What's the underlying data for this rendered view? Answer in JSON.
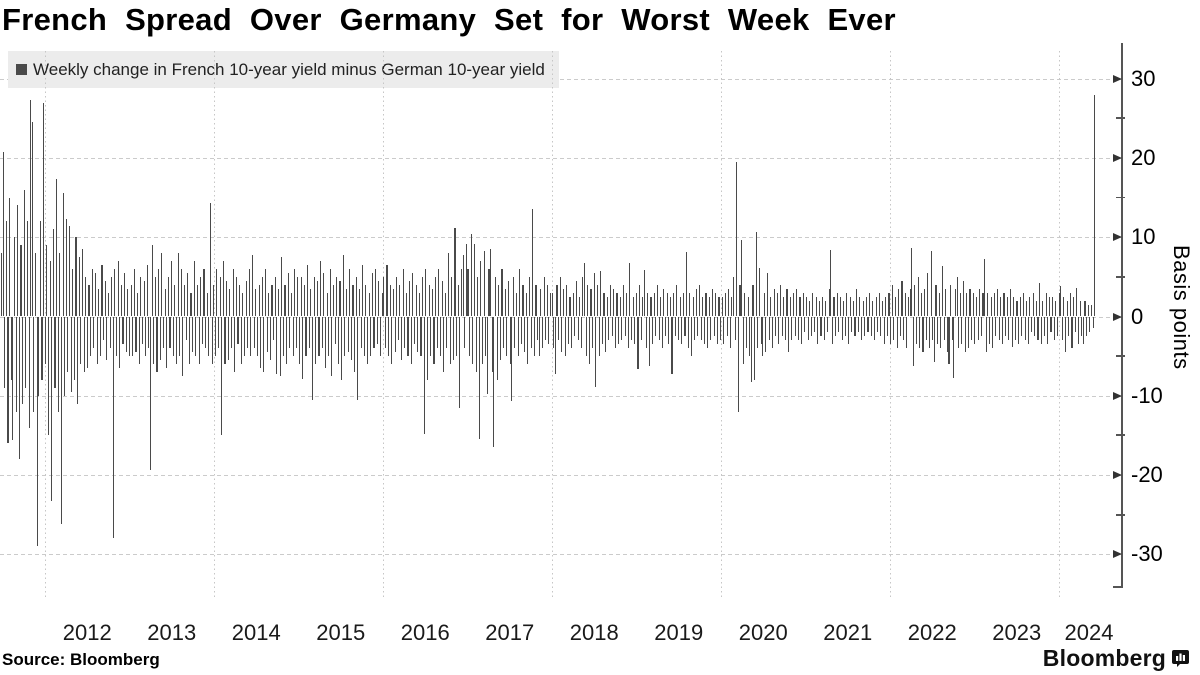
{
  "header": {
    "title": "French Spread Over Germany Set for Worst Week Ever"
  },
  "legend": {
    "marker_color": "#4a4a4a",
    "label": "Weekly change in French 10-year yield minus German 10-year yield"
  },
  "y_axis": {
    "title": "Basis points"
  },
  "footer": {
    "source": "Source: Bloomberg",
    "brand": "Bloomberg"
  },
  "chart_data": {
    "type": "bar",
    "title": "French Spread Over Germany Set for Worst Week Ever",
    "series_name": "Weekly change in French 10-year yield minus German 10-year yield",
    "unit": "basis points",
    "frequency": "weekly",
    "x_range": [
      "2011-06",
      "2024-06"
    ],
    "ylim": [
      -33,
      32
    ],
    "yticks_major": [
      30,
      20,
      10,
      0,
      -10,
      -20,
      -30
    ],
    "yticks_minor": [
      25,
      15,
      5,
      -5,
      -15,
      -25
    ],
    "xtick_years": [
      2012,
      2013,
      2014,
      2015,
      2016,
      2017,
      2018,
      2019,
      2020,
      2021,
      2022,
      2023,
      2024
    ],
    "x_gridline_years": [
      2012,
      2014,
      2016,
      2018,
      2020,
      2022,
      2024
    ],
    "grid": {
      "horizontal": "dashed",
      "vertical": "dotted"
    },
    "bar_color": "#4a4a4a",
    "legend_position": "top-left",
    "values": [
      8,
      20.7,
      -9,
      12,
      -16,
      15,
      -8,
      -15.6,
      10,
      -12,
      14,
      -18,
      9,
      -11,
      16,
      -9,
      12,
      -14,
      27.3,
      24.5,
      -12,
      8,
      -28.9,
      -10,
      12,
      -8,
      26.9,
      -6,
      9,
      -15,
      7,
      -23.3,
      11,
      -9,
      17.4,
      -12,
      8,
      -26.2,
      15.6,
      -10,
      12.3,
      -7,
      11.4,
      -9.5,
      6,
      -8,
      10,
      -11,
      7.5,
      -6,
      8.5,
      -7,
      5,
      -6.5,
      4,
      -5,
      6,
      -4,
      5.5,
      -6,
      3.5,
      -5,
      6.5,
      -3,
      4.5,
      -5.5,
      3,
      -4,
      5,
      -27.9,
      6,
      -5,
      7,
      -6.5,
      4,
      -3.5,
      5.5,
      -4.5,
      3.5,
      -5,
      4,
      -5,
      6,
      -4.5,
      3,
      -6,
      5,
      -3.5,
      4.5,
      -5,
      6.5,
      -4,
      -19.4,
      9,
      -6,
      5,
      -7,
      6,
      -5.5,
      8,
      -4,
      3.5,
      -6.5,
      5,
      -4,
      7,
      -5,
      4,
      -6,
      8,
      -5,
      6,
      -7.5,
      4,
      -3,
      5.5,
      -6,
      3,
      -4.5,
      7,
      -5,
      4,
      -6,
      5,
      -3.5,
      6,
      -4,
      3,
      -5,
      14.3,
      -6,
      4,
      -5,
      6,
      -4,
      5,
      -15,
      7,
      -6,
      4.5,
      -5.5,
      3.5,
      -4,
      6,
      -7,
      5,
      -3.5,
      4,
      -6,
      3,
      -5,
      4.5,
      -4,
      6,
      -5,
      7.8,
      -4,
      3.5,
      -5,
      4,
      -6.5,
      5,
      -7,
      6,
      -4.5,
      3,
      -5.5,
      4,
      -3,
      5,
      -7.2,
      3.5,
      -7.5,
      7.5,
      -5,
      4,
      -6,
      5.5,
      -4,
      3,
      -5,
      6,
      -4,
      5,
      -6,
      5,
      -7.9,
      4,
      -5,
      6.5,
      -4,
      3.5,
      -10.5,
      5,
      -6,
      4.5,
      -5,
      7,
      -4,
      5.5,
      -6.5,
      3,
      -5,
      6,
      -7.5,
      4,
      -3.5,
      5,
      -6,
      4.5,
      -8,
      7.8,
      -5,
      3.5,
      -4.5,
      6,
      -5.5,
      4,
      -7,
      5,
      -10.5,
      3.5,
      -4,
      6.5,
      -5,
      4,
      -6,
      3,
      -5,
      5.5,
      -4,
      6,
      -3.5,
      4.5,
      -5,
      3,
      5,
      -4,
      6.5,
      -5,
      4,
      -6,
      3.5,
      -4.5,
      5,
      -3,
      4,
      -5.5,
      6,
      -4,
      3,
      -5,
      4.5,
      -6,
      5.5,
      -3.5,
      4,
      -4.5,
      3,
      -5,
      5,
      -14.8,
      6,
      -8,
      4,
      -5,
      3.5,
      -6,
      5,
      -4,
      6,
      -5,
      4.5,
      -7,
      3,
      -4,
      8,
      -6,
      5,
      -5.5,
      11.2,
      -5,
      4,
      -11.6,
      6,
      7.8,
      -4,
      9.1,
      6,
      -5,
      10.4,
      -6,
      9.1,
      -7,
      5,
      -15.4,
      7,
      -6,
      8.2,
      -5,
      -9.8,
      6,
      8.5,
      -7,
      -16.5,
      5,
      -8,
      4,
      -5.5,
      6,
      -4,
      3.5,
      -5,
      4.5,
      -6,
      -10.6,
      5,
      -4,
      3,
      -5,
      6,
      -3.5,
      4,
      -4.5,
      3,
      -6,
      5,
      -4,
      13.6,
      -5,
      4,
      -3,
      -5,
      3.5,
      -4,
      5,
      -3,
      4,
      -3.5,
      3,
      3,
      -4,
      -7.2,
      4,
      -3,
      5,
      -4.5,
      3.5,
      -5,
      4,
      -3.5,
      2.5,
      -4,
      3,
      -2.5,
      4.5,
      -3,
      2.5,
      -4,
      5,
      6.8,
      -5,
      4,
      -6,
      3.5,
      -4,
      5.5,
      -8.9,
      4,
      -5,
      5.7,
      -3.5,
      3,
      -4.5,
      2.5,
      -3,
      4,
      -2.5,
      3.5,
      -4,
      3,
      -3.5,
      2.5,
      -3,
      4,
      -2.5,
      3,
      -4,
      6.8,
      -3,
      2.5,
      -3.5,
      3,
      -6.6,
      4,
      -3,
      2.5,
      5.9,
      -4,
      3,
      -6.3,
      2.5,
      -3.5,
      3,
      -2.5,
      4,
      -3,
      2.5,
      -4,
      3.5,
      -2.5,
      3,
      -3.5,
      2.5,
      -7.2,
      3,
      -2.5,
      4,
      -3,
      2.5,
      -3.5,
      3,
      -2.5,
      8.1,
      -4,
      3,
      -5,
      2.5,
      -3,
      3.5,
      -2.5,
      4,
      -3,
      2.5,
      -3.5,
      3,
      -4,
      2.5,
      -3,
      3.5,
      -2.5,
      3,
      -3.5,
      2.5,
      -3,
      2.5,
      -3.5,
      3,
      -2.5,
      3.5,
      -4,
      2.5,
      5,
      -3,
      19.5,
      -12.1,
      4,
      9.6,
      -6,
      3,
      -4,
      2.5,
      -5,
      -8.3,
      4,
      -8,
      10.6,
      -4,
      6.1,
      -3.5,
      -5,
      3,
      -4.5,
      5.5,
      -3,
      2.5,
      -4,
      3.5,
      -2.5,
      3,
      -3.5,
      4,
      -2.5,
      2.5,
      -3,
      3.5,
      -4.5,
      2.5,
      -3,
      3,
      -2.5,
      3.5,
      -3,
      2.5,
      -3.5,
      3,
      -2,
      2.5,
      -3,
      2,
      -2.5,
      3,
      -2,
      2.5,
      -3.5,
      2,
      -2.5,
      2.5,
      -3,
      2,
      -2,
      3.5,
      8.4,
      -3.5,
      2.5,
      -2.5,
      3,
      -2,
      2.5,
      -3,
      2,
      -2.5,
      3,
      -3.5,
      2.5,
      -2,
      2,
      -2.5,
      3.5,
      -2,
      2.5,
      -3,
      2,
      -2.5,
      2.5,
      -2,
      3,
      -2.5,
      2,
      -3,
      2.5,
      -2,
      3,
      -2.5,
      2,
      -3.5,
      2.5,
      -2.5,
      3,
      -3.5,
      4,
      -3,
      2.5,
      -4,
      3.5,
      -2.5,
      4.5,
      -3,
      3,
      -4,
      2.5,
      3.5,
      8.7,
      -6.2,
      4,
      -3.5,
      5,
      -4,
      3,
      -4.5,
      3.5,
      -3,
      5.5,
      -4,
      8.2,
      -3,
      -5.8,
      4,
      -3.5,
      3,
      -4,
      6.4,
      -3,
      3.5,
      -4.5,
      -6,
      4,
      -3,
      -7.8,
      3.5,
      5,
      -4,
      3,
      -3.5,
      4.5,
      -4.5,
      3,
      -4,
      3.5,
      -3,
      3,
      -3.5,
      2.5,
      -3,
      3.5,
      -2.5,
      3,
      7.2,
      -4.5,
      3,
      -3.5,
      2.5,
      -4,
      3,
      -2.5,
      3.5,
      -3,
      2.5,
      -3.5,
      3,
      -2.5,
      2.5,
      -3,
      3.5,
      -3.8,
      2.5,
      -3,
      2,
      -3.5,
      2.5,
      -2.5,
      3,
      -3,
      2,
      -3.5,
      2.5,
      -2,
      3,
      -2.5,
      2,
      -3,
      4.2,
      -3.5,
      2,
      -2.5,
      3,
      -3.5,
      2.5,
      -2,
      2.5,
      -3,
      2,
      -2.5,
      3,
      3.8,
      -3,
      2.5,
      -4.5,
      2,
      -2.5,
      3,
      -4,
      2.5,
      -2,
      3.6,
      -3.5,
      2,
      -2.5,
      -3.5,
      2,
      -2.5,
      1.5,
      -2,
      1.5,
      -1.5,
      27.9
    ]
  }
}
